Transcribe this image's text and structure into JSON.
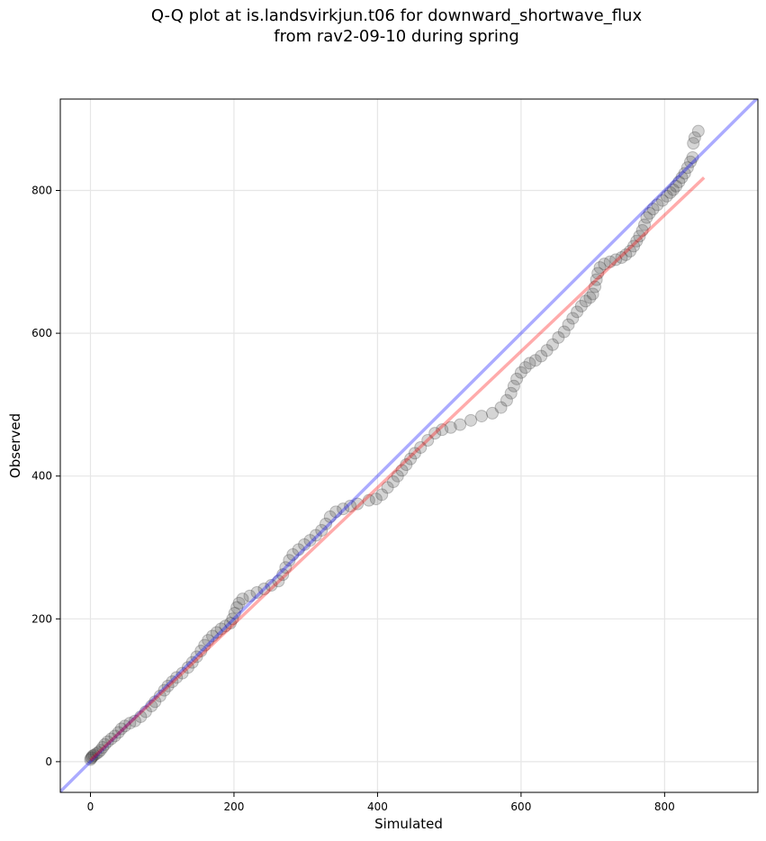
{
  "chart_data": {
    "type": "scatter",
    "title": {
      "line1": "Q-Q plot at is.landsvirkjun.t06 for downward_shortwave_flux",
      "line2": "from rav2-09-10 during spring"
    },
    "xlabel": "Simulated",
    "ylabel": "Observed",
    "xlim": [
      -42,
      930
    ],
    "ylim": [
      -43,
      928
    ],
    "xticks": [
      0,
      200,
      400,
      600,
      800
    ],
    "yticks": [
      0,
      200,
      400,
      600,
      800
    ],
    "grid": true,
    "colors": {
      "points": "#404040",
      "identity_line": "#0000ff",
      "fit_line": "#ff0000",
      "grid": "#e6e6e6",
      "axes": "#000000"
    },
    "identity_line": {
      "x": [
        -42,
        930
      ],
      "y": [
        -42,
        930
      ]
    },
    "fit_line": {
      "x": [
        0,
        855
      ],
      "y": [
        2,
        818
      ]
    },
    "points": [
      [
        0,
        3
      ],
      [
        1,
        5
      ],
      [
        2,
        6
      ],
      [
        3,
        8
      ],
      [
        5,
        9
      ],
      [
        8,
        11
      ],
      [
        11,
        13
      ],
      [
        14,
        16
      ],
      [
        17,
        20
      ],
      [
        20,
        24
      ],
      [
        24,
        28
      ],
      [
        29,
        32
      ],
      [
        34,
        36
      ],
      [
        39,
        41
      ],
      [
        43,
        46
      ],
      [
        48,
        50
      ],
      [
        55,
        54
      ],
      [
        62,
        57
      ],
      [
        70,
        63
      ],
      [
        77,
        70
      ],
      [
        85,
        78
      ],
      [
        90,
        84
      ],
      [
        97,
        92
      ],
      [
        103,
        100
      ],
      [
        108,
        106
      ],
      [
        114,
        112
      ],
      [
        120,
        118
      ],
      [
        128,
        124
      ],
      [
        136,
        132
      ],
      [
        142,
        139
      ],
      [
        148,
        147
      ],
      [
        154,
        155
      ],
      [
        159,
        163
      ],
      [
        164,
        170
      ],
      [
        170,
        176
      ],
      [
        176,
        181
      ],
      [
        182,
        186
      ],
      [
        188,
        190
      ],
      [
        195,
        194
      ],
      [
        198,
        200
      ],
      [
        201,
        208
      ],
      [
        204,
        216
      ],
      [
        207,
        222
      ],
      [
        212,
        228
      ],
      [
        222,
        232
      ],
      [
        232,
        237
      ],
      [
        242,
        242
      ],
      [
        252,
        247
      ],
      [
        262,
        253
      ],
      [
        268,
        262
      ],
      [
        272,
        272
      ],
      [
        277,
        282
      ],
      [
        282,
        290
      ],
      [
        290,
        297
      ],
      [
        298,
        304
      ],
      [
        306,
        310
      ],
      [
        314,
        317
      ],
      [
        322,
        324
      ],
      [
        328,
        333
      ],
      [
        334,
        343
      ],
      [
        342,
        350
      ],
      [
        352,
        354
      ],
      [
        362,
        358
      ],
      [
        372,
        361
      ],
      [
        388,
        366
      ],
      [
        398,
        368
      ],
      [
        406,
        374
      ],
      [
        414,
        384
      ],
      [
        422,
        392
      ],
      [
        428,
        400
      ],
      [
        434,
        408
      ],
      [
        440,
        416
      ],
      [
        446,
        424
      ],
      [
        452,
        432
      ],
      [
        460,
        440
      ],
      [
        470,
        450
      ],
      [
        480,
        460
      ],
      [
        490,
        465
      ],
      [
        502,
        468
      ],
      [
        515,
        472
      ],
      [
        530,
        478
      ],
      [
        545,
        484
      ],
      [
        560,
        488
      ],
      [
        572,
        496
      ],
      [
        580,
        506
      ],
      [
        586,
        516
      ],
      [
        590,
        526
      ],
      [
        594,
        536
      ],
      [
        600,
        545
      ],
      [
        606,
        552
      ],
      [
        612,
        558
      ],
      [
        620,
        562
      ],
      [
        628,
        568
      ],
      [
        636,
        576
      ],
      [
        644,
        584
      ],
      [
        652,
        594
      ],
      [
        660,
        602
      ],
      [
        666,
        612
      ],
      [
        672,
        621
      ],
      [
        678,
        630
      ],
      [
        684,
        638
      ],
      [
        690,
        645
      ],
      [
        696,
        650
      ],
      [
        700,
        655
      ],
      [
        703,
        665
      ],
      [
        705,
        675
      ],
      [
        707,
        684
      ],
      [
        710,
        692
      ],
      [
        716,
        697
      ],
      [
        724,
        700
      ],
      [
        732,
        703
      ],
      [
        740,
        706
      ],
      [
        746,
        710
      ],
      [
        752,
        715
      ],
      [
        757,
        722
      ],
      [
        761,
        729
      ],
      [
        765,
        736
      ],
      [
        769,
        744
      ],
      [
        772,
        752
      ],
      [
        775,
        762
      ],
      [
        779,
        768
      ],
      [
        784,
        774
      ],
      [
        790,
        780
      ],
      [
        797,
        786
      ],
      [
        803,
        792
      ],
      [
        808,
        797
      ],
      [
        812,
        801
      ],
      [
        816,
        806
      ],
      [
        820,
        812
      ],
      [
        824,
        818
      ],
      [
        828,
        824
      ],
      [
        832,
        832
      ],
      [
        836,
        840
      ],
      [
        839,
        846
      ],
      [
        840,
        866
      ],
      [
        842,
        874
      ],
      [
        847,
        883
      ]
    ]
  }
}
